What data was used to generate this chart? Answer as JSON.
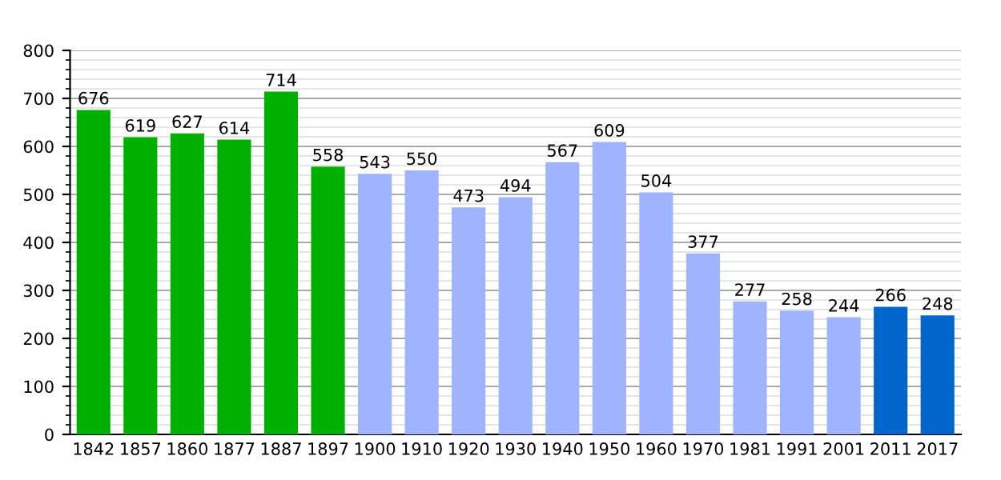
{
  "chart_data": {
    "type": "bar",
    "categories": [
      "1842",
      "1857",
      "1860",
      "1877",
      "1887",
      "1897",
      "1900",
      "1910",
      "1920",
      "1930",
      "1940",
      "1950",
      "1960",
      "1970",
      "1981",
      "1991",
      "2001",
      "2011",
      "2017"
    ],
    "values": [
      676,
      619,
      627,
      614,
      714,
      558,
      543,
      550,
      473,
      494,
      567,
      609,
      504,
      377,
      277,
      258,
      244,
      266,
      248
    ],
    "colors": [
      "#00b000",
      "#00b000",
      "#00b000",
      "#00b000",
      "#00b000",
      "#00b000",
      "#9fb3ff",
      "#9fb3ff",
      "#9fb3ff",
      "#9fb3ff",
      "#9fb3ff",
      "#9fb3ff",
      "#9fb3ff",
      "#9fb3ff",
      "#9fb3ff",
      "#9fb3ff",
      "#9fb3ff",
      "#0066cc",
      "#0066cc"
    ],
    "ylim": [
      0,
      800
    ],
    "yticks": [
      0,
      100,
      200,
      300,
      400,
      500,
      600,
      700,
      800
    ],
    "grid": "y",
    "data_labels": true
  }
}
